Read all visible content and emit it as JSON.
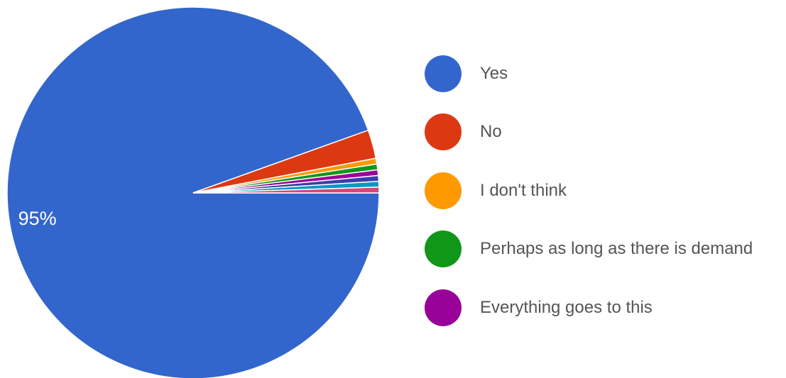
{
  "chart_data": {
    "type": "pie",
    "categories": [
      "Yes",
      "No",
      "I don't think",
      "Perhaps as long as there is demand",
      "Everything goes to this"
    ],
    "values": [
      95,
      2.5,
      0.5,
      0.5,
      0.5
    ],
    "colors": [
      "#3366cc",
      "#dc3912",
      "#ff9900",
      "#109618",
      "#990099"
    ],
    "extra_slices": [
      {
        "value": 0.5,
        "color": "#3b3eac"
      },
      {
        "value": 0.5,
        "color": "#0099c6"
      },
      {
        "value": 0.5,
        "color": "#dd4477"
      }
    ],
    "data_labels": [
      "95%"
    ],
    "legend_position": "right"
  }
}
